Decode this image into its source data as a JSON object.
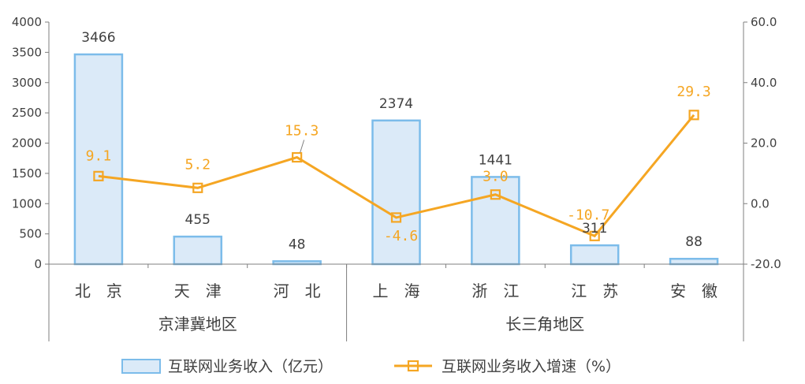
{
  "chart_data": {
    "type": "bar",
    "categories": [
      "北　京",
      "天　津",
      "河　北",
      "上　海",
      "浙　江",
      "江　苏",
      "安　徽"
    ],
    "groups": [
      {
        "label": "京津冀地区",
        "categories": [
          "北　京",
          "天　津",
          "河　北"
        ]
      },
      {
        "label": "长三角地区",
        "categories": [
          "上　海",
          "浙　江",
          "江　苏",
          "安　徽"
        ]
      }
    ],
    "series": [
      {
        "name": "互联网业务收入（亿元）",
        "type": "bar",
        "axis": "left",
        "values": [
          3466,
          455,
          48,
          2374,
          1441,
          311,
          88
        ],
        "labels": [
          "3466",
          "455",
          "48",
          "2374",
          "1441",
          "311",
          "88"
        ],
        "color": "#7cbcea",
        "fill": "#dbeaf8"
      },
      {
        "name": "互联网业务收入增速（%）",
        "type": "line",
        "axis": "right",
        "values": [
          9.1,
          5.2,
          15.3,
          -4.6,
          3.0,
          -10.7,
          29.3
        ],
        "labels": [
          "9.1",
          "5.2",
          "15.3",
          "-4.6",
          "3.0",
          "-10.7",
          "29.3"
        ],
        "color": "#f5a623"
      }
    ],
    "y_left": {
      "lim": [
        0,
        4000
      ],
      "ticks": [
        "0",
        "500",
        "1000",
        "1500",
        "2000",
        "2500",
        "3000",
        "3500",
        "4000"
      ]
    },
    "y_right": {
      "lim": [
        -20,
        60
      ],
      "ticks": [
        "-20.0",
        "0.0",
        "20.0",
        "40.0",
        "60.0"
      ]
    },
    "grid": false,
    "legend": "bottom"
  }
}
